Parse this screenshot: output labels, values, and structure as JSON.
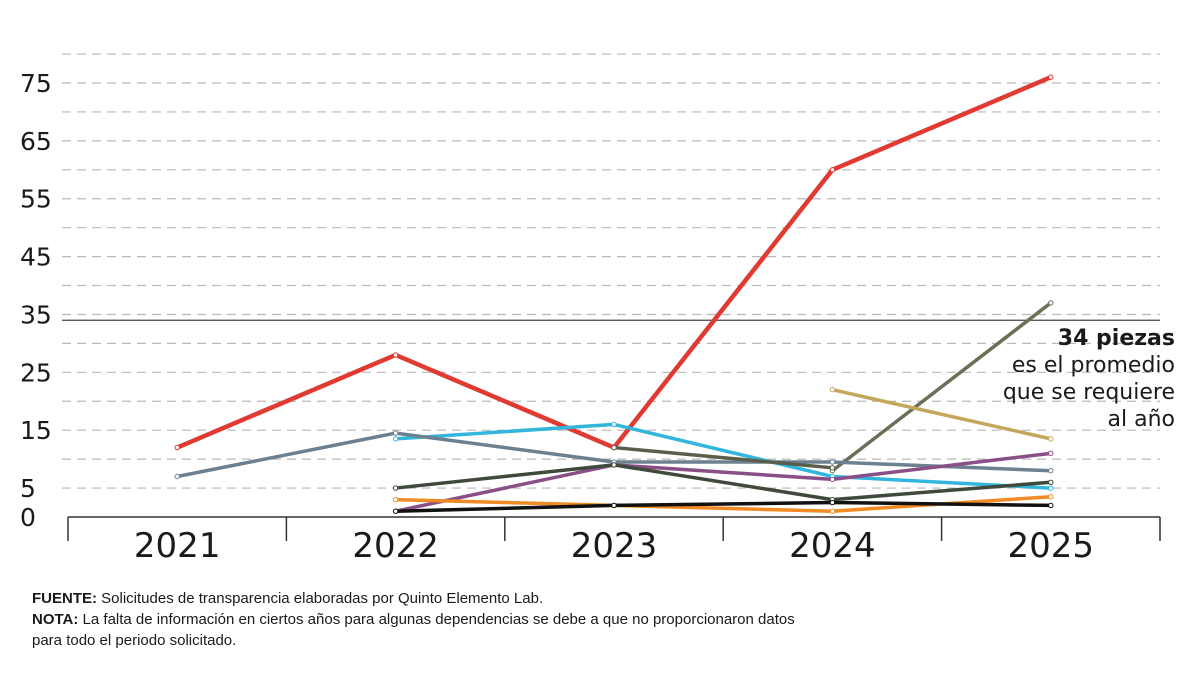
{
  "chart_data": {
    "type": "line",
    "x": [
      "2021",
      "2022",
      "2023",
      "2024",
      "2025"
    ],
    "ytick_labels": [
      "0",
      "5",
      "15",
      "25",
      "35",
      "45",
      "55",
      "65",
      "75"
    ],
    "ylim": [
      0,
      80
    ],
    "grid": "dashed horizontal",
    "reference_line": {
      "value": 34
    },
    "series": [
      {
        "color": "#e03a33",
        "values": [
          12,
          28,
          12,
          60,
          76
        ]
      },
      {
        "color": "#6b6f58",
        "values": [
          null,
          null,
          null,
          8,
          37
        ]
      },
      {
        "color": "#c4a75a",
        "values": [
          null,
          null,
          null,
          22,
          13.5
        ]
      },
      {
        "color": "#33b6dd",
        "values": [
          null,
          13.5,
          16,
          7,
          5
        ]
      },
      {
        "color": "#6c8090",
        "values": [
          7,
          14.5,
          9.5,
          9.5,
          8
        ]
      },
      {
        "color": "#595f4a",
        "values": [
          null,
          null,
          12,
          8.5,
          null
        ]
      },
      {
        "color": "#8a4f87",
        "values": [
          null,
          1,
          9,
          6.5,
          11
        ]
      },
      {
        "color": "#404a3c",
        "values": [
          null,
          5,
          9,
          3,
          6
        ]
      },
      {
        "color": "#f08a22",
        "values": [
          null,
          3,
          2,
          1,
          3.5
        ]
      },
      {
        "color": "#111111",
        "values": [
          null,
          1,
          2,
          2.5,
          2
        ]
      }
    ]
  },
  "annotation": {
    "line1": "34 piezas",
    "line2": "es el promedio",
    "line3": "que se requiere",
    "line4": "al año"
  },
  "notes": {
    "fuente_label": "FUENTE:",
    "fuente_text": " Solicitudes de transparencia elaboradas por Quinto Elemento Lab.",
    "nota_label": "NOTA:",
    "nota_text": " La falta de información en ciertos años para algunas dependencias se debe a que no proporcionaron datos",
    "nota_text2": "para todo el periodo solicitado."
  }
}
